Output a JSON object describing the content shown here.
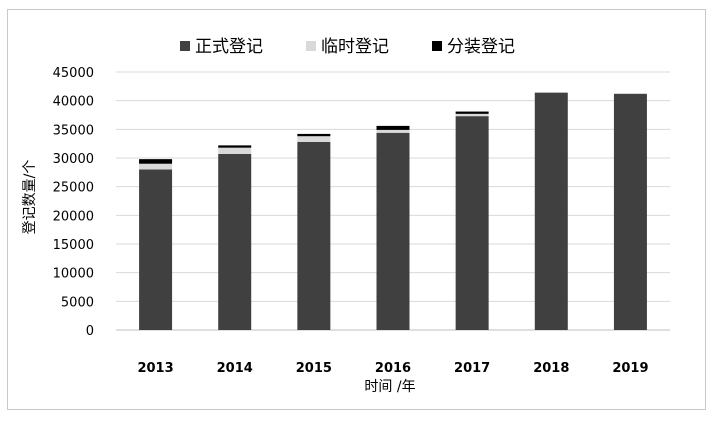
{
  "chart_data": {
    "type": "bar",
    "stacked": true,
    "title": "",
    "xlabel": "时间 /年",
    "ylabel": "登记数量/个",
    "ylim": [
      0,
      45000
    ],
    "yticks": [
      "0",
      "5000",
      "10000",
      "15000",
      "20000",
      "25000",
      "30000",
      "35000",
      "40000",
      "45000"
    ],
    "grid": true,
    "legend_position": "top",
    "categories": [
      "2013",
      "2014",
      "2015",
      "2016",
      "2017",
      "2018",
      "2019"
    ],
    "series": [
      {
        "name": "正式登记",
        "color": "#404040",
        "values": [
          28000,
          30700,
          32800,
          34400,
          37300,
          41400,
          41200
        ]
      },
      {
        "name": "临时登记",
        "color": "#d9d9d9",
        "values": [
          1000,
          1100,
          1000,
          500,
          400,
          0,
          0
        ]
      },
      {
        "name": "分装登记",
        "color": "#000000",
        "values": [
          800,
          400,
          400,
          700,
          400,
          0,
          0
        ]
      }
    ]
  }
}
